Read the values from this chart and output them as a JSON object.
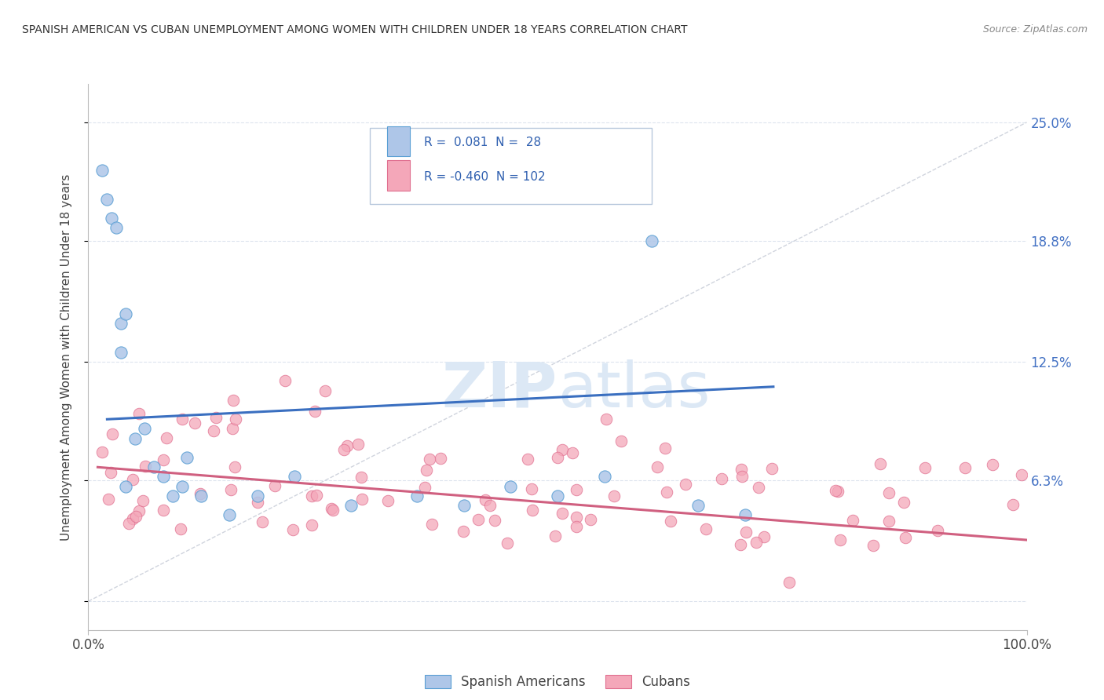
{
  "title": "SPANISH AMERICAN VS CUBAN UNEMPLOYMENT AMONG WOMEN WITH CHILDREN UNDER 18 YEARS CORRELATION CHART",
  "source": "Source: ZipAtlas.com",
  "ylabel": "Unemployment Among Women with Children Under 18 years",
  "xlim": [
    0,
    100
  ],
  "ylim": [
    -1.5,
    27
  ],
  "ytick_vals": [
    0,
    6.3,
    12.5,
    18.8,
    25.0
  ],
  "ytick_labels": [
    "",
    "6.3%",
    "12.5%",
    "18.8%",
    "25.0%"
  ],
  "xtick_vals": [
    0,
    100
  ],
  "xtick_labels": [
    "0.0%",
    "100.0%"
  ],
  "blue_fill": "#aec6e8",
  "blue_edge": "#5a9fd4",
  "blue_line_color": "#3a6fc0",
  "pink_fill": "#f4a7b9",
  "pink_edge": "#e07090",
  "pink_line_color": "#d06080",
  "diag_color": "#c8cdd8",
  "grid_color": "#dde4ee",
  "label_blue": "Spanish Americans",
  "label_pink": "Cubans",
  "legend_r1_text": "R =  0.081  N =  28",
  "legend_r2_text": "R = -0.460  N = 102",
  "blue_line_x0": 2,
  "blue_line_x1": 73,
  "blue_line_y0": 9.5,
  "blue_line_y1": 11.2,
  "pink_line_x0": 1,
  "pink_line_x1": 100,
  "pink_line_y0": 7.0,
  "pink_line_y1": 3.2,
  "watermark_zip": "ZIP",
  "watermark_atlas": "atlas",
  "wm_color": "#dce8f5"
}
